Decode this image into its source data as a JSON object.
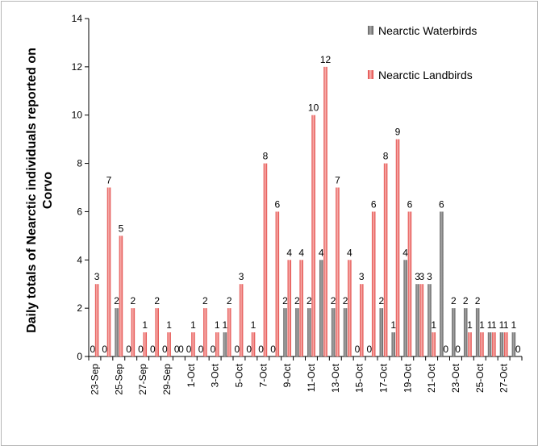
{
  "chart_data": {
    "type": "bar",
    "title": "",
    "xlabel": "",
    "ylabel_lines": [
      "Daily totals of Nearctic individuals reported on",
      "Corvo"
    ],
    "ylim": [
      0,
      14
    ],
    "yticks": [
      0,
      2,
      4,
      6,
      8,
      10,
      12,
      14
    ],
    "grid": false,
    "legend_position": "top-right",
    "categories": [
      "23-Sep",
      "24-Sep",
      "25-Sep",
      "26-Sep",
      "27-Sep",
      "28-Sep",
      "29-Sep",
      "30-Sep",
      "1-Oct",
      "2-Oct",
      "3-Oct",
      "4-Oct",
      "5-Oct",
      "6-Oct",
      "7-Oct",
      "8-Oct",
      "9-Oct",
      "10-Oct",
      "11-Oct",
      "12-Oct",
      "13-Oct",
      "14-Oct",
      "15-Oct",
      "16-Oct",
      "17-Oct",
      "18-Oct",
      "19-Oct",
      "20-Oct",
      "21-Oct",
      "22-Oct",
      "23-Oct",
      "24-Oct",
      "25-Oct",
      "26-Oct",
      "27-Oct",
      "28-Oct"
    ],
    "xtick_labels": [
      "23-Sep",
      "25-Sep",
      "27-Sep",
      "29-Sep",
      "1-Oct",
      "3-Oct",
      "5-Oct",
      "7-Oct",
      "9-Oct",
      "11-Oct",
      "13-Oct",
      "15-Oct",
      "17-Oct",
      "19-Oct",
      "21-Oct",
      "23-Oct",
      "25-Oct",
      "27-Oct"
    ],
    "series": [
      {
        "name": "Nearctic Waterbirds",
        "color": "#7f7f7f",
        "values": [
          0,
          0,
          2,
          0,
          0,
          0,
          0,
          0,
          0,
          0,
          0,
          1,
          0,
          0,
          0,
          0,
          2,
          2,
          2,
          4,
          2,
          2,
          0,
          0,
          2,
          1,
          4,
          3,
          3,
          6,
          2,
          2,
          2,
          1,
          1,
          1
        ]
      },
      {
        "name": "Nearctic Landbirds",
        "color": "#f08080",
        "values": [
          3,
          7,
          5,
          2,
          1,
          2,
          1,
          0,
          1,
          2,
          1,
          2,
          3,
          1,
          8,
          6,
          4,
          4,
          10,
          12,
          7,
          4,
          3,
          6,
          8,
          9,
          6,
          3,
          1,
          0,
          0,
          1,
          1,
          1,
          1,
          0
        ]
      }
    ]
  }
}
